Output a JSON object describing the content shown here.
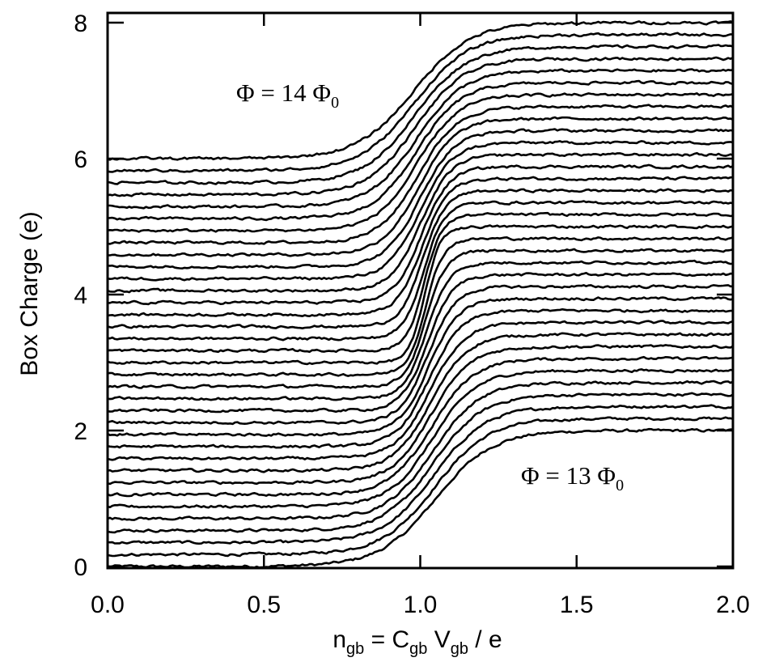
{
  "chart_data": {
    "type": "line",
    "xlabel": {
      "main": "n",
      "main_sub": "gb",
      "eq": " = C",
      "c_sub": "gb",
      "v": " V",
      "v_sub": "gb",
      "tail": " / e"
    },
    "ylabel": "Box Charge (e)",
    "xlim": [
      0.0,
      2.0
    ],
    "ylim": [
      0,
      8.1
    ],
    "xticks": [
      "0.0",
      "0.5",
      "1.0",
      "1.5",
      "2.0"
    ],
    "yticks": [
      "0",
      "2",
      "4",
      "6",
      "8"
    ],
    "xtick_values": [
      0.0,
      0.5,
      1.0,
      1.5,
      2.0
    ],
    "ytick_values": [
      0,
      2,
      4,
      6,
      8
    ],
    "grid": false,
    "annotations": [
      {
        "phi": "Φ",
        "text": " = 14 Φ",
        "sub": "0",
        "anchor": "upper-left"
      },
      {
        "phi": "Φ",
        "text": " = 13 Φ",
        "sub": "0",
        "anchor": "lower-right"
      }
    ],
    "series_description": "35 offset curves, flux stepped from 13 to 14 flux quanta; each is a smooth step of height 2e",
    "curve_count": 35,
    "start_levels": {
      "first": 0.0,
      "last": 6.0
    },
    "step_height": 2.0,
    "center_x": {
      "first": 1.05,
      "last": 0.98,
      "middle": 1.0
    },
    "width": {
      "edge": 0.18,
      "middle": 0.05
    }
  }
}
